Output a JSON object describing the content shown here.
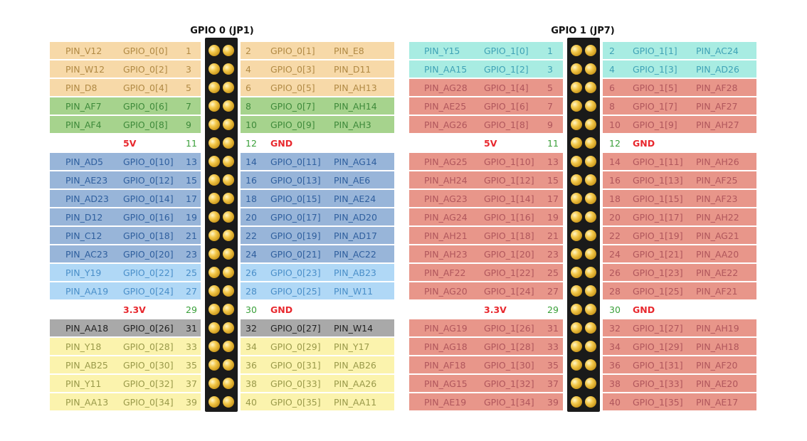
{
  "headers": {
    "gpio0": "GPIO 0 (JP1)",
    "gpio1": "GPIO 1 (JP7)"
  },
  "colors": {
    "orange": "#f7d9a8",
    "green": "#a6d38d",
    "blue": "#98b5d9",
    "lightblue": "#b0d8f6",
    "gray": "#a9a9a9",
    "yellow": "#fbf3ad",
    "teal": "#a8ece2",
    "salmon": "#e8968a",
    "white": "#ffffff",
    "textOrange": "#b18a45",
    "textGreen": "#3e8a3a",
    "textBlue": "#2f5f9e",
    "textLightBlue": "#4a8fc9",
    "textYellow": "#9a9a4a",
    "textTeal": "#3fa2b6",
    "textSalmon": "#b0565c",
    "textDark": "#222222"
  },
  "gpio0": [
    {
      "left": [
        "PIN_V12",
        "GPIO_0[0]",
        "1"
      ],
      "right": [
        "2",
        "GPIO_0[1]",
        "PIN_E8"
      ],
      "lc": "orange",
      "rc": "orange"
    },
    {
      "left": [
        "PIN_W12",
        "GPIO_0[2]",
        "3"
      ],
      "right": [
        "4",
        "GPIO_0[3]",
        "PIN_D11"
      ],
      "lc": "orange",
      "rc": "orange"
    },
    {
      "left": [
        "PIN_D8",
        "GPIO_0[4]",
        "5"
      ],
      "right": [
        "6",
        "GPIO_0[5]",
        "PIN_AH13"
      ],
      "lc": "orange",
      "rc": "orange"
    },
    {
      "left": [
        "PIN_AF7",
        "GPIO_0[6]",
        "7"
      ],
      "right": [
        "8",
        "GPIO_0[7]",
        "PIN_AH14"
      ],
      "lc": "green",
      "rc": "green"
    },
    {
      "left": [
        "PIN_AF4",
        "GPIO_0[8]",
        "9"
      ],
      "right": [
        "10",
        "GPIO_0[9]",
        "PIN_AH3"
      ],
      "lc": "green",
      "rc": "green"
    },
    {
      "left": [
        "",
        "5V",
        "11"
      ],
      "right": [
        "12",
        "GND",
        ""
      ],
      "lc": "white",
      "rc": "white",
      "power": true
    },
    {
      "left": [
        "PIN_AD5",
        "GPIO_0[10]",
        "13"
      ],
      "right": [
        "14",
        "GPIO_0[11]",
        "PIN_AG14"
      ],
      "lc": "blue",
      "rc": "blue"
    },
    {
      "left": [
        "PIN_AE23",
        "GPIO_0[12]",
        "15"
      ],
      "right": [
        "16",
        "GPIO_0[13]",
        "PIN_AE6"
      ],
      "lc": "blue",
      "rc": "blue"
    },
    {
      "left": [
        "PIN_AD23",
        "GPIO_0[14]",
        "17"
      ],
      "right": [
        "18",
        "GPIO_0[15]",
        "PIN_AE24"
      ],
      "lc": "blue",
      "rc": "blue"
    },
    {
      "left": [
        "PIN_D12",
        "GPIO_0[16]",
        "19"
      ],
      "right": [
        "20",
        "GPIO_0[17]",
        "PIN_AD20"
      ],
      "lc": "blue",
      "rc": "blue"
    },
    {
      "left": [
        "PIN_C12",
        "GPIO_0[18]",
        "21"
      ],
      "right": [
        "22",
        "GPIO_0[19]",
        "PIN_AD17"
      ],
      "lc": "blue",
      "rc": "blue"
    },
    {
      "left": [
        "PIN_AC23",
        "GPIO_0[20]",
        "23"
      ],
      "right": [
        "24",
        "GPIO_0[21]",
        "PIN_AC22"
      ],
      "lc": "blue",
      "rc": "blue"
    },
    {
      "left": [
        "PIN_Y19",
        "GPIO_0[22]",
        "25"
      ],
      "right": [
        "26",
        "GPIO_0[23]",
        "PIN_AB23"
      ],
      "lc": "lightblue",
      "rc": "lightblue"
    },
    {
      "left": [
        "PIN_AA19",
        "GPIO_0[24]",
        "27"
      ],
      "right": [
        "28",
        "GPIO_0[25]",
        "PIN_W11"
      ],
      "lc": "lightblue",
      "rc": "lightblue"
    },
    {
      "left": [
        "",
        "3.3V",
        "29"
      ],
      "right": [
        "30",
        "GND",
        ""
      ],
      "lc": "white",
      "rc": "white",
      "power": true
    },
    {
      "left": [
        "PIN_AA18",
        "GPIO_0[26]",
        "31"
      ],
      "right": [
        "32",
        "GPIO_0[27]",
        "PIN_W14"
      ],
      "lc": "gray",
      "rc": "gray"
    },
    {
      "left": [
        "PIN_Y18",
        "GPIO_0[28]",
        "33"
      ],
      "right": [
        "34",
        "GPIO_0[29]",
        "PIN_Y17"
      ],
      "lc": "yellow",
      "rc": "yellow"
    },
    {
      "left": [
        "PIN_AB25",
        "GPIO_0[30]",
        "35"
      ],
      "right": [
        "36",
        "GPIO_0[31]",
        "PIN_AB26"
      ],
      "lc": "yellow",
      "rc": "yellow"
    },
    {
      "left": [
        "PIN_Y11",
        "GPIO_0[32]",
        "37"
      ],
      "right": [
        "38",
        "GPIO_0[33]",
        "PIN_AA26"
      ],
      "lc": "yellow",
      "rc": "yellow"
    },
    {
      "left": [
        "PIN_AA13",
        "GPIO_0[34]",
        "39"
      ],
      "right": [
        "40",
        "GPIO_0[35]",
        "PIN_AA11"
      ],
      "lc": "yellow",
      "rc": "yellow"
    }
  ],
  "gpio1": [
    {
      "left": [
        "PIN_Y15",
        "GPIO_1[0]",
        "1"
      ],
      "right": [
        "2",
        "GPIO_1[1]",
        "PIN_AC24"
      ],
      "lc": "teal",
      "rc": "teal"
    },
    {
      "left": [
        "PIN_AA15",
        "GPIO_1[2]",
        "3"
      ],
      "right": [
        "4",
        "GPIO_1[3]",
        "PIN_AD26"
      ],
      "lc": "teal",
      "rc": "teal"
    },
    {
      "left": [
        "PIN_AG28",
        "GPIO_1[4]",
        "5"
      ],
      "right": [
        "6",
        "GPIO_1[5]",
        "PIN_AF28"
      ],
      "lc": "salmon",
      "rc": "salmon"
    },
    {
      "left": [
        "PIN_AE25",
        "GPIO_1[6]",
        "7"
      ],
      "right": [
        "8",
        "GPIO_1[7]",
        "PIN_AF27"
      ],
      "lc": "salmon",
      "rc": "salmon"
    },
    {
      "left": [
        "PIN_AG26",
        "GPIO_1[8]",
        "9"
      ],
      "right": [
        "10",
        "GPIO_1[9]",
        "PIN_AH27"
      ],
      "lc": "salmon",
      "rc": "salmon"
    },
    {
      "left": [
        "",
        "5V",
        "11"
      ],
      "right": [
        "12",
        "GND",
        ""
      ],
      "lc": "white",
      "rc": "white",
      "power": true
    },
    {
      "left": [
        "PIN_AG25",
        "GPIO_1[10]",
        "13"
      ],
      "right": [
        "14",
        "GPIO_1[11]",
        "PIN_AH26"
      ],
      "lc": "salmon",
      "rc": "salmon"
    },
    {
      "left": [
        "PIN_AH24",
        "GPIO_1[12]",
        "15"
      ],
      "right": [
        "16",
        "GPIO_1[13]",
        "PIN_AF25"
      ],
      "lc": "salmon",
      "rc": "salmon"
    },
    {
      "left": [
        "PIN_AG23",
        "GPIO_1[14]",
        "17"
      ],
      "right": [
        "18",
        "GPIO_1[15]",
        "PIN_AF23"
      ],
      "lc": "salmon",
      "rc": "salmon"
    },
    {
      "left": [
        "PIN_AG24",
        "GPIO_1[16]",
        "19"
      ],
      "right": [
        "20",
        "GPIO_1[17]",
        "PIN_AH22"
      ],
      "lc": "salmon",
      "rc": "salmon"
    },
    {
      "left": [
        "PIN_AH21",
        "GPIO_1[18]",
        "21"
      ],
      "right": [
        "22",
        "GPIO_1[19]",
        "PIN_AG21"
      ],
      "lc": "salmon",
      "rc": "salmon"
    },
    {
      "left": [
        "PIN_AH23",
        "GPIO_1[20]",
        "23"
      ],
      "right": [
        "24",
        "GPIO_1[21]",
        "PIN_AA20"
      ],
      "lc": "salmon",
      "rc": "salmon"
    },
    {
      "left": [
        "PIN_AF22",
        "GPIO_1[22]",
        "25"
      ],
      "right": [
        "26",
        "GPIO_1[23]",
        "PIN_AE22"
      ],
      "lc": "salmon",
      "rc": "salmon"
    },
    {
      "left": [
        "PIN_AG20",
        "GPIO_1[24]",
        "27"
      ],
      "right": [
        "28",
        "GPIO_1[25]",
        "PIN_AF21"
      ],
      "lc": "salmon",
      "rc": "salmon"
    },
    {
      "left": [
        "",
        "3.3V",
        "29"
      ],
      "right": [
        "30",
        "GND",
        ""
      ],
      "lc": "white",
      "rc": "white",
      "power": true
    },
    {
      "left": [
        "PIN_AG19",
        "GPIO_1[26]",
        "31"
      ],
      "right": [
        "32",
        "GPIO_1[27]",
        "PIN_AH19"
      ],
      "lc": "salmon",
      "rc": "salmon"
    },
    {
      "left": [
        "PIN_AG18",
        "GPIO_1[28]",
        "33"
      ],
      "right": [
        "34",
        "GPIO_1[29]",
        "PIN_AH18"
      ],
      "lc": "salmon",
      "rc": "salmon"
    },
    {
      "left": [
        "PIN_AF18",
        "GPIO_1[30]",
        "35"
      ],
      "right": [
        "36",
        "GPIO_1[31]",
        "PIN_AF20"
      ],
      "lc": "salmon",
      "rc": "salmon"
    },
    {
      "left": [
        "PIN_AG15",
        "GPIO_1[32]",
        "37"
      ],
      "right": [
        "38",
        "GPIO_1[33]",
        "PIN_AE20"
      ],
      "lc": "salmon",
      "rc": "salmon"
    },
    {
      "left": [
        "PIN_AE19",
        "GPIO_1[34]",
        "39"
      ],
      "right": [
        "40",
        "GPIO_1[35]",
        "PIN_AE17"
      ],
      "lc": "salmon",
      "rc": "salmon"
    }
  ]
}
